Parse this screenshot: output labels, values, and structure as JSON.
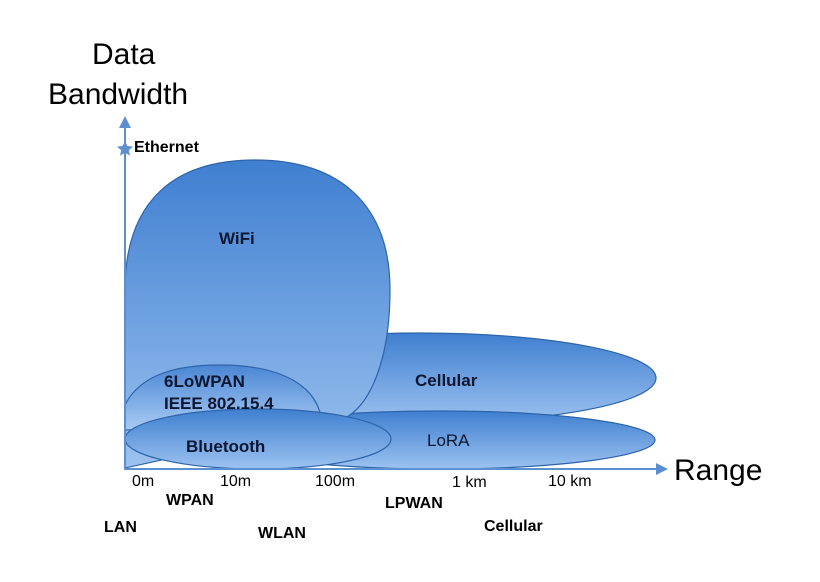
{
  "axes": {
    "y_title_line1": "Data",
    "y_title_line2": "Bandwidth",
    "x_title": "Range",
    "top_marker": "Ethernet"
  },
  "ticks": [
    "0m",
    "10m",
    "100m",
    "1 km",
    "10 km"
  ],
  "categories": [
    "WPAN",
    "LAN",
    "WLAN",
    "LPWAN",
    "Cellular"
  ],
  "regions": {
    "wifi": "WiFi",
    "cellular": "Cellular",
    "lowpan_line1": "6LoWPAN",
    "lowpan_line2": "IEEE 802.15.4",
    "bluetooth": "Bluetooth",
    "lora": "LoRA"
  },
  "colors": {
    "axis": "#5b8fcf",
    "fill_top": "#3f7fd0",
    "fill_bottom": "#9cc2f0",
    "outline": "#2e64a8"
  }
}
